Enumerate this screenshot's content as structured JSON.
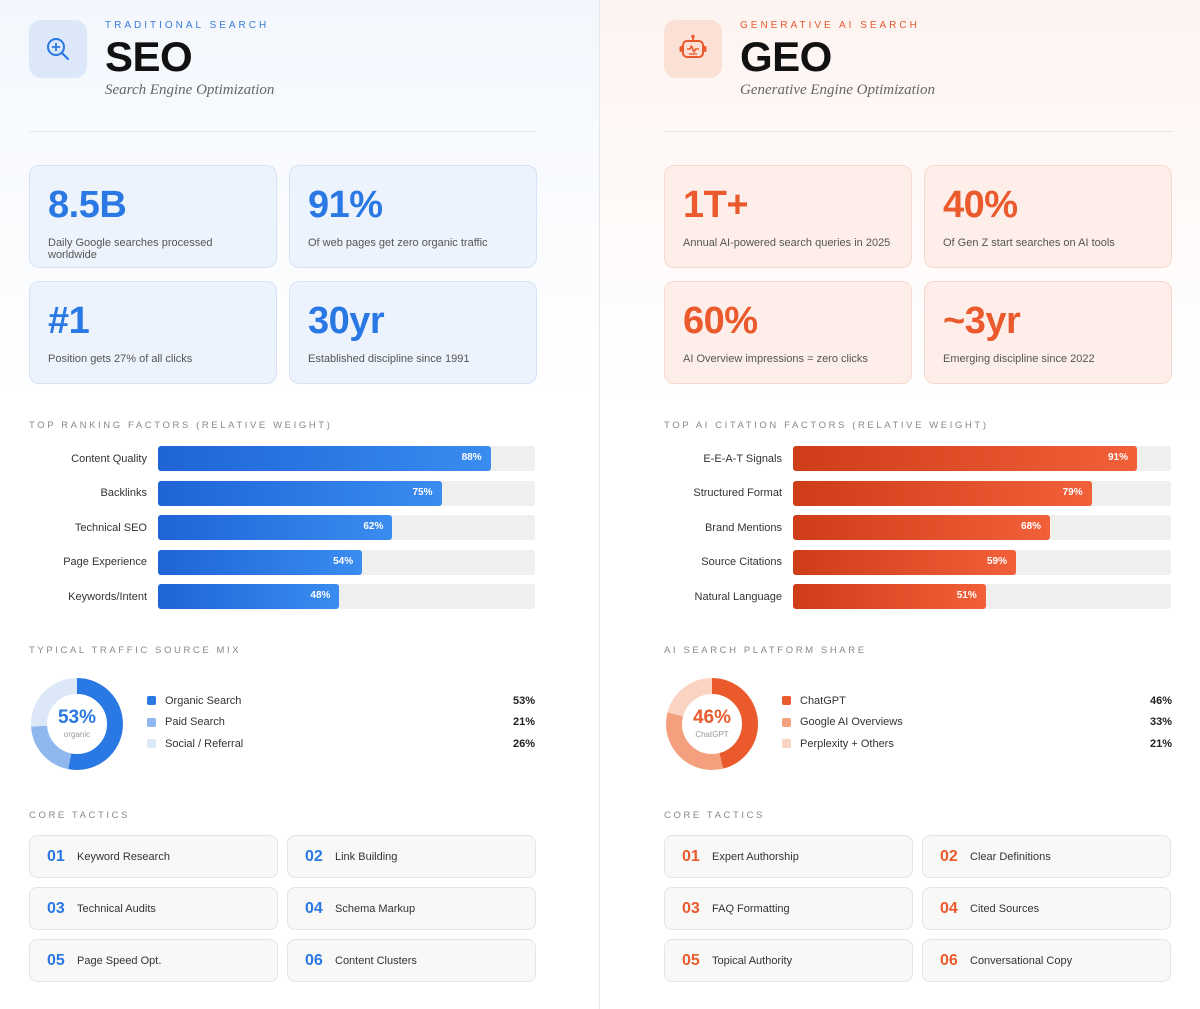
{
  "seo": {
    "kicker": "TRADITIONAL SEARCH",
    "title": "SEO",
    "subtitle": "Search Engine Optimization",
    "icon": "magnify-plus-icon",
    "stats": [
      {
        "value": "8.5B",
        "label": "Daily Google searches processed worldwide"
      },
      {
        "value": "91%",
        "label": "Of web pages get zero organic traffic"
      },
      {
        "value": "#1",
        "label": "Position gets 27% of all clicks"
      },
      {
        "value": "30yr",
        "label": "Established discipline since 1991"
      }
    ],
    "factors_label": "TOP RANKING FACTORS (RELATIVE WEIGHT)",
    "mix_label": "TYPICAL TRAFFIC SOURCE MIX",
    "donut_center": {
      "value": "53%",
      "sub": "organic"
    },
    "tactics_label": "CORE TACTICS",
    "tactics": [
      {
        "num": "01",
        "name": "Keyword Research"
      },
      {
        "num": "02",
        "name": "Link Building"
      },
      {
        "num": "03",
        "name": "Technical Audits"
      },
      {
        "num": "04",
        "name": "Schema Markup"
      },
      {
        "num": "05",
        "name": "Page Speed Opt."
      },
      {
        "num": "06",
        "name": "Content Clusters"
      }
    ]
  },
  "geo": {
    "kicker": "GENERATIVE AI SEARCH",
    "title": "GEO",
    "subtitle": "Generative Engine Optimization",
    "icon": "robot-icon",
    "stats": [
      {
        "value": "1T+",
        "label": "Annual AI-powered search queries in 2025"
      },
      {
        "value": "40%",
        "label": "Of Gen Z start searches on AI tools"
      },
      {
        "value": "60%",
        "label": "AI Overview impressions = zero clicks"
      },
      {
        "value": "~3yr",
        "label": "Emerging discipline since 2022"
      }
    ],
    "factors_label": "TOP AI CITATION FACTORS (RELATIVE WEIGHT)",
    "mix_label": "AI SEARCH PLATFORM SHARE",
    "donut_center": {
      "value": "46%",
      "sub": "ChatGPT"
    },
    "tactics_label": "CORE TACTICS",
    "tactics": [
      {
        "num": "01",
        "name": "Expert Authorship"
      },
      {
        "num": "02",
        "name": "Clear Definitions"
      },
      {
        "num": "03",
        "name": "FAQ Formatting"
      },
      {
        "num": "04",
        "name": "Cited Sources"
      },
      {
        "num": "05",
        "name": "Topical Authority"
      },
      {
        "num": "06",
        "name": "Conversational Copy"
      }
    ]
  },
  "colors": {
    "seo_accent": "#2a78e4",
    "geo_accent": "#ea5a2c"
  },
  "chart_data": [
    {
      "type": "bar",
      "orientation": "horizontal",
      "title": "TOP RANKING FACTORS (RELATIVE WEIGHT)",
      "categories": [
        "Content Quality",
        "Backlinks",
        "Technical SEO",
        "Page Experience",
        "Keywords/Intent"
      ],
      "values": [
        88,
        75,
        62,
        54,
        48
      ],
      "value_labels": [
        "88%",
        "75%",
        "62%",
        "54%",
        "48%"
      ],
      "xlim": [
        0,
        100
      ],
      "grid": false
    },
    {
      "type": "pie",
      "title": "TYPICAL TRAFFIC SOURCE MIX",
      "categories": [
        "Organic Search",
        "Paid Search",
        "Social / Referral"
      ],
      "values": [
        53,
        21,
        26
      ],
      "value_labels": [
        "53%",
        "21%",
        "26%"
      ],
      "colors": [
        "#2a78e4",
        "#8fb8ef",
        "#dce8f8"
      ],
      "legend": "right"
    },
    {
      "type": "bar",
      "orientation": "horizontal",
      "title": "TOP AI CITATION FACTORS (RELATIVE WEIGHT)",
      "categories": [
        "E-E-A-T Signals",
        "Structured Format",
        "Brand Mentions",
        "Source Citations",
        "Natural Language"
      ],
      "values": [
        91,
        79,
        68,
        59,
        51
      ],
      "value_labels": [
        "91%",
        "79%",
        "68%",
        "59%",
        "51%"
      ],
      "xlim": [
        0,
        100
      ],
      "grid": false
    },
    {
      "type": "pie",
      "title": "AI SEARCH PLATFORM SHARE",
      "categories": [
        "ChatGPT",
        "Google AI Overviews",
        "Perplexity + Others"
      ],
      "values": [
        46,
        33,
        21
      ],
      "value_labels": [
        "46%",
        "33%",
        "21%"
      ],
      "colors": [
        "#ea5a2c",
        "#f4a07f",
        "#fad3c3"
      ],
      "legend": "right"
    }
  ]
}
